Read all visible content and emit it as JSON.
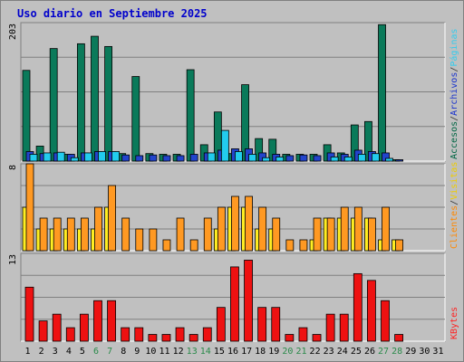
{
  "title": "Uso diario en Septiembre 2025",
  "chart_data": {
    "type": "bar",
    "days": [
      "1",
      "2",
      "3",
      "4",
      "5",
      "6",
      "7",
      "8",
      "9",
      "10",
      "11",
      "12",
      "13",
      "14",
      "15",
      "16",
      "17",
      "18",
      "19",
      "20",
      "21",
      "22",
      "23",
      "24",
      "25",
      "26",
      "27",
      "28",
      "29",
      "30",
      "31"
    ],
    "weekend_days": [
      "6",
      "7",
      "13",
      "14",
      "20",
      "21",
      "27",
      "28"
    ],
    "panels": [
      {
        "max_label": "203",
        "ymax": 203,
        "legend": [
          {
            "text": "Accesos",
            "color": "#006644"
          },
          {
            "text": "/",
            "color": "#333333"
          },
          {
            "text": "Archivos",
            "color": "#1a33cc"
          },
          {
            "text": "/",
            "color": "#333333"
          },
          {
            "text": "Páginas",
            "color": "#33ccee"
          }
        ],
        "series": [
          {
            "name": "Accesos",
            "color": "#0a7a5a",
            "values": [
              133,
              22,
              165,
              10,
              172,
              183,
              168,
              11,
              124,
              11,
              10,
              10,
              134,
              24,
              72,
              11,
              112,
              33,
              32,
              10,
              10,
              10,
              24,
              12,
              53,
              58,
              200,
              2,
              0,
              0,
              0
            ]
          },
          {
            "name": "Archivos",
            "color": "#2244cc",
            "values": [
              14,
              11,
              12,
              10,
              12,
              14,
              14,
              9,
              8,
              9,
              8,
              8,
              10,
              12,
              16,
              18,
              18,
              12,
              10,
              8,
              9,
              8,
              12,
              10,
              16,
              14,
              12,
              2,
              0,
              0,
              0
            ]
          },
          {
            "name": "Páginas",
            "color": "#22ccee",
            "values": [
              10,
              12,
              13,
              5,
              12,
              14,
              14,
              0,
              0,
              0,
              0,
              0,
              0,
              12,
              45,
              14,
              10,
              5,
              6,
              0,
              0,
              0,
              6,
              6,
              10,
              11,
              4,
              0,
              0,
              0,
              0
            ]
          }
        ]
      },
      {
        "max_label": "8",
        "ymax": 8,
        "legend": [
          {
            "text": "Clientes",
            "color": "#ff8800"
          },
          {
            "text": "/",
            "color": "#333333"
          },
          {
            "text": "Visitas",
            "color": "#eecc00"
          }
        ],
        "series": [
          {
            "name": "Visitas",
            "color": "#ffee22",
            "values": [
              4,
              2,
              2,
              2,
              2,
              2,
              4,
              0,
              0,
              0,
              0,
              0,
              0,
              0,
              2,
              4,
              4,
              2,
              2,
              0,
              0,
              1,
              3,
              3,
              3,
              3,
              1,
              1,
              0,
              0,
              0
            ]
          },
          {
            "name": "Clientes",
            "color": "#ff9922",
            "values": [
              8,
              3,
              3,
              3,
              3,
              4,
              6,
              3,
              2,
              2,
              1,
              3,
              1,
              3,
              4,
              5,
              5,
              4,
              3,
              1,
              1,
              3,
              3,
              4,
              4,
              3,
              4,
              1,
              0,
              0,
              0
            ]
          }
        ]
      },
      {
        "max_label": "13",
        "ymax": 13,
        "legend": [
          {
            "text": "KBytes",
            "color": "#ff2222"
          }
        ],
        "series": [
          {
            "name": "KBytes",
            "color": "#ee1111",
            "values": [
              8,
              3,
              4,
              2,
              4,
              6,
              6,
              2,
              2,
              1,
              1,
              2,
              1,
              2,
              5,
              11,
              12,
              5,
              5,
              1,
              2,
              1,
              4,
              4,
              10,
              9,
              6,
              1,
              0,
              0,
              0
            ]
          }
        ]
      }
    ]
  }
}
